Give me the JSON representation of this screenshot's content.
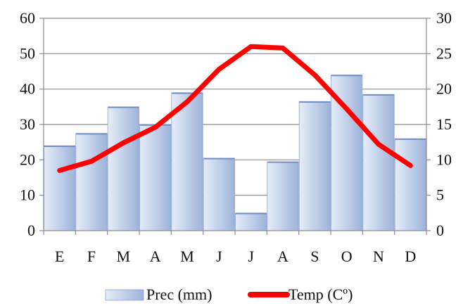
{
  "chart_data": {
    "type": "bar",
    "categories": [
      "E",
      "F",
      "M",
      "A",
      "M",
      "J",
      "J",
      "A",
      "S",
      "O",
      "N",
      "D"
    ],
    "series": [
      {
        "name": "Prec (mm)",
        "type": "bar",
        "axis": "left",
        "values": [
          24,
          27.5,
          35,
          30,
          39,
          20.5,
          5,
          19.5,
          36.5,
          44,
          38.5,
          26
        ]
      },
      {
        "name": "Temp (Cº)",
        "type": "line",
        "axis": "right",
        "values": [
          8.5,
          9.8,
          12.4,
          14.6,
          18.2,
          22.8,
          26,
          25.8,
          22,
          17.2,
          12.2,
          9.2
        ]
      }
    ],
    "y_left": {
      "ylim": [
        0,
        60
      ],
      "ticks": [
        "0",
        "10",
        "20",
        "30",
        "40",
        "50",
        "60"
      ]
    },
    "y_right": {
      "ylim": [
        0,
        30
      ],
      "ticks": [
        "0",
        "5",
        "10",
        "15",
        "20",
        "25",
        "30"
      ]
    },
    "grid": "horizontal",
    "legend_position": "bottom",
    "colors": {
      "bar_light": "#e6edf8",
      "bar_dark": "#9db3da",
      "bar_edge": "#8aa3cf",
      "line": "#ff0000",
      "grid": "#8c8c8c"
    }
  }
}
